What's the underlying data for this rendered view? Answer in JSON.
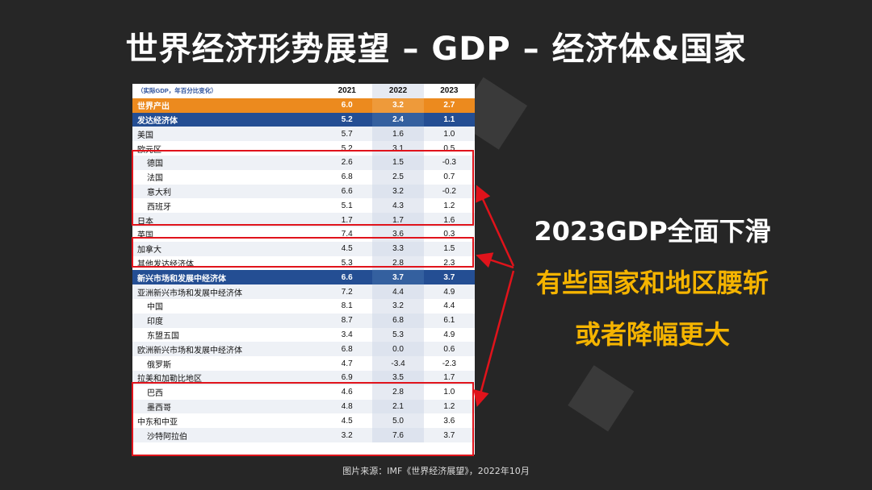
{
  "title": "世界经济形势展望 – GDP – 经济体&国家",
  "table": {
    "note": "（实际GDP，年百分比变化）",
    "years": [
      "2021",
      "2022",
      "2023"
    ],
    "rows": [
      {
        "name": "世界产出",
        "v": [
          "6.0",
          "3.2",
          "2.7"
        ]
      },
      {
        "name": "发达经济体",
        "v": [
          "5.2",
          "2.4",
          "1.1"
        ]
      },
      {
        "name": "美国",
        "v": [
          "5.7",
          "1.6",
          "1.0"
        ]
      },
      {
        "name": "欧元区",
        "v": [
          "5.2",
          "3.1",
          "0.5"
        ]
      },
      {
        "name": "德国",
        "v": [
          "2.6",
          "1.5",
          "-0.3"
        ]
      },
      {
        "name": "法国",
        "v": [
          "6.8",
          "2.5",
          "0.7"
        ]
      },
      {
        "name": "意大利",
        "v": [
          "6.6",
          "3.2",
          "-0.2"
        ]
      },
      {
        "name": "西班牙",
        "v": [
          "5.1",
          "4.3",
          "1.2"
        ]
      },
      {
        "name": "日本",
        "v": [
          "1.7",
          "1.7",
          "1.6"
        ]
      },
      {
        "name": "英国",
        "v": [
          "7.4",
          "3.6",
          "0.3"
        ]
      },
      {
        "name": "加拿大",
        "v": [
          "4.5",
          "3.3",
          "1.5"
        ]
      },
      {
        "name": "其他发达经济体",
        "v": [
          "5.3",
          "2.8",
          "2.3"
        ]
      },
      {
        "name": "新兴市场和发展中经济体",
        "v": [
          "6.6",
          "3.7",
          "3.7"
        ]
      },
      {
        "name": "亚洲新兴市场和发展中经济体",
        "v": [
          "7.2",
          "4.4",
          "4.9"
        ]
      },
      {
        "name": "中国",
        "v": [
          "8.1",
          "3.2",
          "4.4"
        ]
      },
      {
        "name": "印度",
        "v": [
          "8.7",
          "6.8",
          "6.1"
        ]
      },
      {
        "name": "东盟五国",
        "v": [
          "3.4",
          "5.3",
          "4.9"
        ]
      },
      {
        "name": "欧洲新兴市场和发展中经济体",
        "v": [
          "6.8",
          "0.0",
          "0.6"
        ]
      },
      {
        "name": "俄罗斯",
        "v": [
          "4.7",
          "-3.4",
          "-2.3"
        ]
      },
      {
        "name": "拉美和加勒比地区",
        "v": [
          "6.9",
          "3.5",
          "1.7"
        ]
      },
      {
        "name": "巴西",
        "v": [
          "4.6",
          "2.8",
          "1.0"
        ]
      },
      {
        "name": "墨西哥",
        "v": [
          "4.8",
          "2.1",
          "1.2"
        ]
      },
      {
        "name": "中东和中亚",
        "v": [
          "4.5",
          "5.0",
          "3.6"
        ]
      },
      {
        "name": "沙特阿拉伯",
        "v": [
          "3.2",
          "7.6",
          "3.7"
        ]
      }
    ]
  },
  "callout": {
    "line1": "2023GDP全面下滑",
    "line2": "有些国家和地区腰斩",
    "line3": "或者降幅更大"
  },
  "source": "图片来源：IMF《世界经济展望》，2022年10月",
  "colors": {
    "background": "#262626",
    "highlight_text": "#f5b400",
    "box_red": "#e0131b",
    "world_row": "#ec8a1e",
    "group_row": "#244e93"
  }
}
